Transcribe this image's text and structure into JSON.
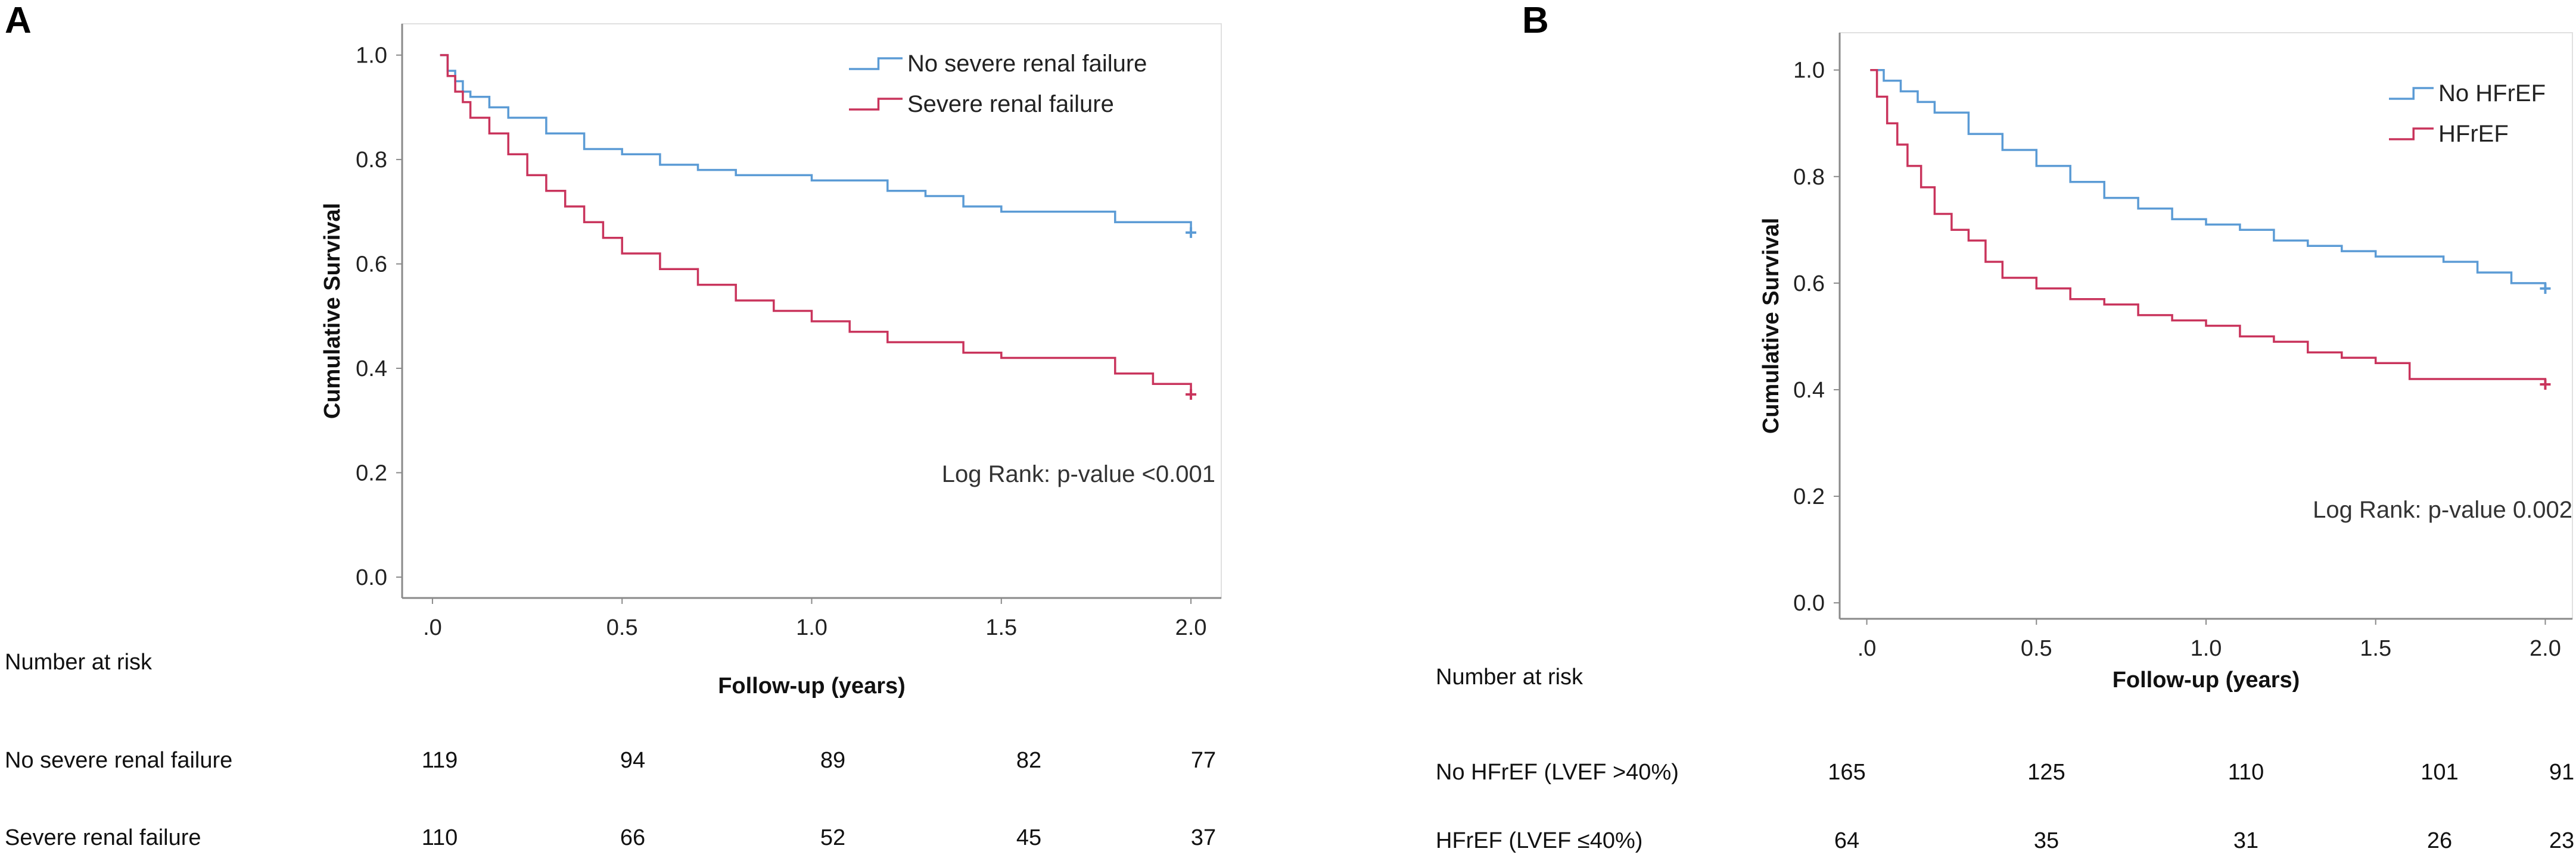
{
  "colors": {
    "no_group": "#5b9bd5",
    "group": "#c9345c",
    "axis": "#8a8a8a",
    "frame": "#e0e0e0"
  },
  "chart_data": [
    {
      "type": "line",
      "panel_label": "A",
      "xlabel": "Follow-up (years)",
      "ylabel": "Cumulative Survival",
      "xlim": [
        -0.08,
        2.08
      ],
      "ylim": [
        -0.04,
        1.06
      ],
      "x_ticks": [
        0,
        0.5,
        1.0,
        1.5,
        2.0
      ],
      "x_tick_labels": [
        ".0",
        "0.5",
        "1.0",
        "1.5",
        "2.0"
      ],
      "y_ticks": [
        0,
        0.2,
        0.4,
        0.6,
        0.8,
        1.0
      ],
      "y_tick_labels": [
        "0.0",
        "0.2",
        "0.4",
        "0.6",
        "0.8",
        "1.0"
      ],
      "legend": [
        "No severe renal failure",
        "Severe renal failure"
      ],
      "annotation": "Log Rank: p-value <0.001",
      "series": [
        {
          "name": "No severe renal failure",
          "color_key": "no_group",
          "x": [
            0.02,
            0.04,
            0.06,
            0.08,
            0.1,
            0.15,
            0.2,
            0.3,
            0.4,
            0.5,
            0.6,
            0.7,
            0.8,
            1.0,
            1.2,
            1.3,
            1.4,
            1.5,
            1.8,
            2.0
          ],
          "y": [
            1.0,
            0.97,
            0.95,
            0.93,
            0.92,
            0.9,
            0.88,
            0.85,
            0.82,
            0.81,
            0.79,
            0.78,
            0.77,
            0.76,
            0.74,
            0.73,
            0.71,
            0.7,
            0.68,
            0.66
          ]
        },
        {
          "name": "Severe renal failure",
          "color_key": "group",
          "x": [
            0.02,
            0.04,
            0.06,
            0.08,
            0.1,
            0.15,
            0.2,
            0.25,
            0.3,
            0.35,
            0.4,
            0.45,
            0.5,
            0.6,
            0.7,
            0.8,
            0.9,
            1.0,
            1.1,
            1.2,
            1.4,
            1.5,
            1.6,
            1.8,
            1.9,
            2.0
          ],
          "y": [
            1.0,
            0.96,
            0.93,
            0.91,
            0.88,
            0.85,
            0.81,
            0.77,
            0.74,
            0.71,
            0.68,
            0.65,
            0.62,
            0.59,
            0.56,
            0.53,
            0.51,
            0.49,
            0.47,
            0.45,
            0.43,
            0.42,
            0.42,
            0.39,
            0.37,
            0.35
          ]
        }
      ],
      "risk_table": {
        "title": "Number at risk",
        "rows": [
          {
            "label": "No severe renal failure",
            "values": [
              "119",
              "94",
              "89",
              "82",
              "77"
            ]
          },
          {
            "label": "Severe renal failure",
            "values": [
              "110",
              "66",
              "52",
              "45",
              "37"
            ]
          }
        ]
      }
    },
    {
      "type": "line",
      "panel_label": "B",
      "xlabel": "Follow-up (years)",
      "ylabel": "Cumulative Survival",
      "xlim": [
        -0.08,
        2.08
      ],
      "ylim": [
        -0.03,
        1.07
      ],
      "x_ticks": [
        0,
        0.5,
        1.0,
        1.5,
        2.0
      ],
      "x_tick_labels": [
        ".0",
        "0.5",
        "1.0",
        "1.5",
        "2.0"
      ],
      "y_ticks": [
        0,
        0.2,
        0.4,
        0.6,
        0.8,
        1.0
      ],
      "y_tick_labels": [
        "0.0",
        "0.2",
        "0.4",
        "0.6",
        "0.8",
        "1.0"
      ],
      "legend": [
        "No HFrEF",
        "HFrEF"
      ],
      "annotation": "Log Rank: p-value 0.002",
      "series": [
        {
          "name": "No HFrEF",
          "color_key": "no_group",
          "x": [
            0.01,
            0.05,
            0.1,
            0.15,
            0.2,
            0.3,
            0.4,
            0.5,
            0.6,
            0.7,
            0.8,
            0.9,
            1.0,
            1.1,
            1.2,
            1.3,
            1.4,
            1.5,
            1.6,
            1.7,
            1.8,
            1.9,
            2.0
          ],
          "y": [
            1.0,
            0.98,
            0.96,
            0.94,
            0.92,
            0.88,
            0.85,
            0.82,
            0.79,
            0.76,
            0.74,
            0.72,
            0.71,
            0.7,
            0.68,
            0.67,
            0.66,
            0.65,
            0.65,
            0.64,
            0.62,
            0.6,
            0.59
          ]
        },
        {
          "name": "HFrEF",
          "color_key": "group",
          "x": [
            0.01,
            0.03,
            0.06,
            0.09,
            0.12,
            0.16,
            0.2,
            0.25,
            0.3,
            0.35,
            0.4,
            0.5,
            0.6,
            0.7,
            0.8,
            0.9,
            1.0,
            1.1,
            1.2,
            1.3,
            1.4,
            1.5,
            1.6,
            2.0
          ],
          "y": [
            1.0,
            0.95,
            0.9,
            0.86,
            0.82,
            0.78,
            0.73,
            0.7,
            0.68,
            0.64,
            0.61,
            0.59,
            0.57,
            0.56,
            0.54,
            0.53,
            0.52,
            0.5,
            0.49,
            0.47,
            0.46,
            0.45,
            0.42,
            0.41
          ]
        }
      ],
      "risk_table": {
        "title": "Number at risk",
        "rows": [
          {
            "label": "No HFrEF (LVEF >40%)",
            "values": [
              "165",
              "125",
              "110",
              "101",
              "91"
            ]
          },
          {
            "label": "HFrEF (LVEF ≤40%)",
            "values": [
              "64",
              "35",
              "31",
              "26",
              "23"
            ]
          }
        ]
      }
    }
  ]
}
